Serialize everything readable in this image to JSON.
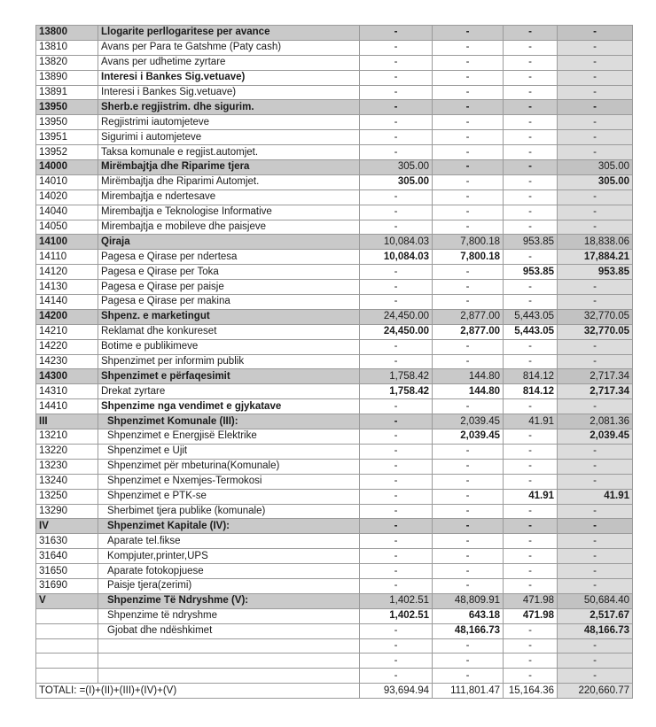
{
  "table": {
    "rows": [
      [
        "13800",
        "Llogarite perllogaritese per avance",
        "-",
        "-",
        "-",
        "-"
      ],
      [
        "13810",
        "Avans per Para te Gatshme (Paty cash)",
        "-",
        "-",
        "-",
        "-"
      ],
      [
        "13820",
        "Avans per udhetime zyrtare",
        "-",
        "-",
        "-",
        "-"
      ],
      [
        "13890",
        "Interesi i Bankes Sig.vetuave)",
        "-",
        "-",
        "-",
        "-"
      ],
      [
        "13891",
        "Interesi i Bankes Sig.vetuave)",
        "-",
        "-",
        "-",
        "-"
      ],
      [
        "13950",
        "Sherb.e regjistrim. dhe sigurim.",
        "-",
        "-",
        "-",
        "-"
      ],
      [
        "13950",
        "Regjistrimi iautomjeteve",
        "-",
        "-",
        "-",
        "-"
      ],
      [
        "13951",
        "Sigurimi i automjeteve",
        "-",
        "-",
        "-",
        "-"
      ],
      [
        "13952",
        "Taksa komunale e regjist.automjet.",
        "-",
        "-",
        "-",
        "-"
      ],
      [
        "14000",
        "Mirëmbajtja dhe Riparime tjera",
        "305.00",
        "-",
        "-",
        "305.00"
      ],
      [
        "14010",
        "Mirëmbajtja  dhe Riparimi  Automjet.",
        "305.00",
        "-",
        "-",
        "305.00"
      ],
      [
        "14020",
        "Mirembajtja e ndertesave",
        "-",
        "-",
        "-",
        "-"
      ],
      [
        "14040",
        "Mirembajtja e Teknologise Informative",
        "-",
        "-",
        "-",
        "-"
      ],
      [
        "14050",
        "Mirembajtja e mobileve dhe paisjeve",
        "-",
        "-",
        "-",
        "-"
      ],
      [
        "14100",
        "Qiraja",
        "10,084.03",
        "7,800.18",
        "953.85",
        "18,838.06"
      ],
      [
        "14110",
        "Pagesa e Qirase per ndertesa",
        "10,084.03",
        "7,800.18",
        "-",
        "17,884.21"
      ],
      [
        "14120",
        "Pagesa e Qirase per Toka",
        "-",
        "-",
        "953.85",
        "953.85"
      ],
      [
        "14130",
        "Pagesa e Qirase per paisje",
        "-",
        "-",
        "-",
        "-"
      ],
      [
        "14140",
        "Pagesa e Qirase per makina",
        "-",
        "-",
        "-",
        "-"
      ],
      [
        "14200",
        "Shpenz. e marketingut",
        "24,450.00",
        "2,877.00",
        "5,443.05",
        "32,770.05"
      ],
      [
        "14210",
        "Reklamat dhe konkureset",
        "24,450.00",
        "2,877.00",
        "5,443.05",
        "32,770.05"
      ],
      [
        "14220",
        "Botime e publikimeve",
        "-",
        "-",
        "-",
        "-"
      ],
      [
        "14230",
        "Shpenzimet per informim publik",
        "-",
        "-",
        "-",
        "-"
      ],
      [
        "14300",
        "Shpenzimet e përfaqesimit",
        "1,758.42",
        "144.80",
        "814.12",
        "2,717.34"
      ],
      [
        "14310",
        "Drekat zyrtare",
        "1,758.42",
        "144.80",
        "814.12",
        "2,717.34"
      ],
      [
        "14410",
        "Shpenzime nga vendimet e gjykatave",
        "-",
        "-",
        "-",
        "-"
      ],
      [
        "III",
        "Shpenzimet  Komunale (III):",
        "-",
        "2,039.45",
        "41.91",
        "2,081.36"
      ],
      [
        "13210",
        "Shpenzimet e Energjisë Elektrike",
        "-",
        "2,039.45",
        "-",
        "2,039.45"
      ],
      [
        "13220",
        "Shpenzimet e Ujit",
        "-",
        "-",
        "-",
        "-"
      ],
      [
        "13230",
        "Shpenzimet për mbeturina(Komunale)",
        "-",
        "-",
        "-",
        "-"
      ],
      [
        "13240",
        "Shpenzimet e Nxemjes-Termokosi",
        "-",
        "-",
        "-",
        "-"
      ],
      [
        "13250",
        "Shpenzimet e PTK-se",
        "-",
        "-",
        "41.91",
        "41.91"
      ],
      [
        "13290",
        "Sherbimet tjera publike (komunale)",
        "-",
        "-",
        "-",
        "-"
      ],
      [
        "IV",
        "Shpenzimet Kapitale (IV):",
        "-",
        "-",
        "-",
        "-"
      ],
      [
        "31630",
        "Aparate tel.fikse",
        "-",
        "-",
        "-",
        "-"
      ],
      [
        "31640",
        "Kompjuter,printer,UPS",
        "-",
        "-",
        "-",
        "-"
      ],
      [
        "31650",
        "Aparate fotokopjuese",
        "-",
        "-",
        "-",
        "-"
      ],
      [
        "31690",
        "Paisje tjera(zerimi)",
        "-",
        "-",
        "-",
        "-"
      ],
      [
        "V",
        "Shpenzime Të Ndryshme (V):",
        "1,402.51",
        "48,809.91",
        "471.98",
        "50,684.40"
      ],
      [
        null,
        "Shpenzime të ndryshme",
        "1,402.51",
        "643.18",
        "471.98",
        "2,517.67"
      ],
      [
        null,
        "Gjobat dhe ndëshkimet",
        "-",
        "48,166.73",
        "-",
        "48,166.73"
      ],
      [
        null,
        null,
        "-",
        "-",
        "-",
        "-"
      ],
      [
        null,
        null,
        "-",
        "-",
        "-",
        "-"
      ],
      [
        null,
        null,
        "-",
        "-",
        "-",
        "-"
      ]
    ],
    "total": {
      "label": "TOTALI: =(I)+(II)+(III)+(IV)+(V)",
      "values": [
        "93,694.94",
        "111,801.47",
        "15,164.36",
        "220,660.77"
      ]
    }
  }
}
